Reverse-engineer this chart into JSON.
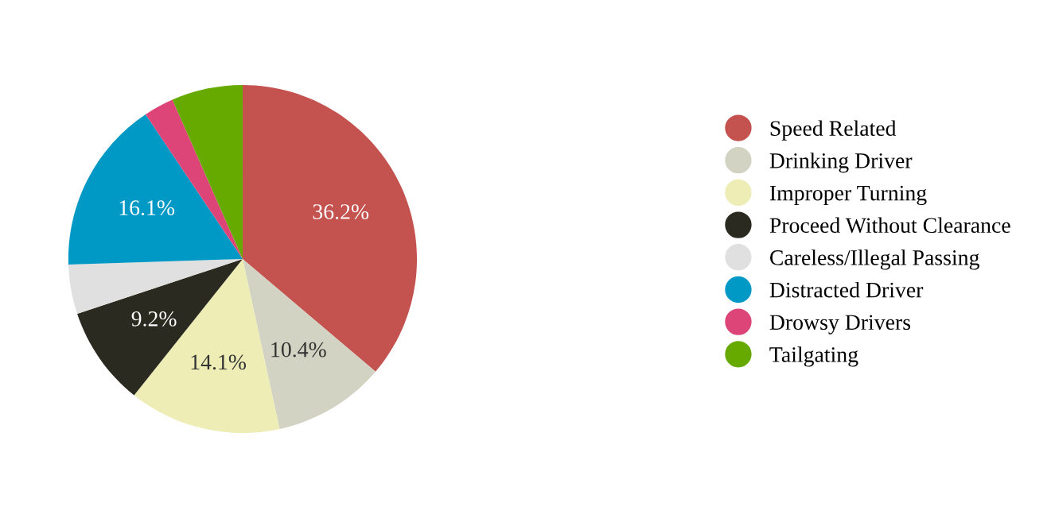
{
  "chart_data": {
    "type": "pie",
    "categories": [
      "Speed Related",
      "Drinking Driver",
      "Improper Turning",
      "Proceed Without Clearance",
      "Careless/Illegal Passing",
      "Distracted Driver",
      "Drowsy Drivers",
      "Tailgating"
    ],
    "values": [
      36.2,
      10.4,
      14.1,
      9.2,
      4.6,
      16.1,
      2.8,
      6.6
    ],
    "value_labels": [
      "36.2%",
      "10.4%",
      "14.1%",
      "9.2%",
      null,
      "16.1%",
      null,
      null
    ],
    "colors": [
      "#c4524f",
      "#d3d3c3",
      "#ededb5",
      "#2a2a20",
      "#e0e0e0",
      "#0099c6",
      "#dd4477",
      "#66aa00"
    ],
    "legend": "right"
  }
}
